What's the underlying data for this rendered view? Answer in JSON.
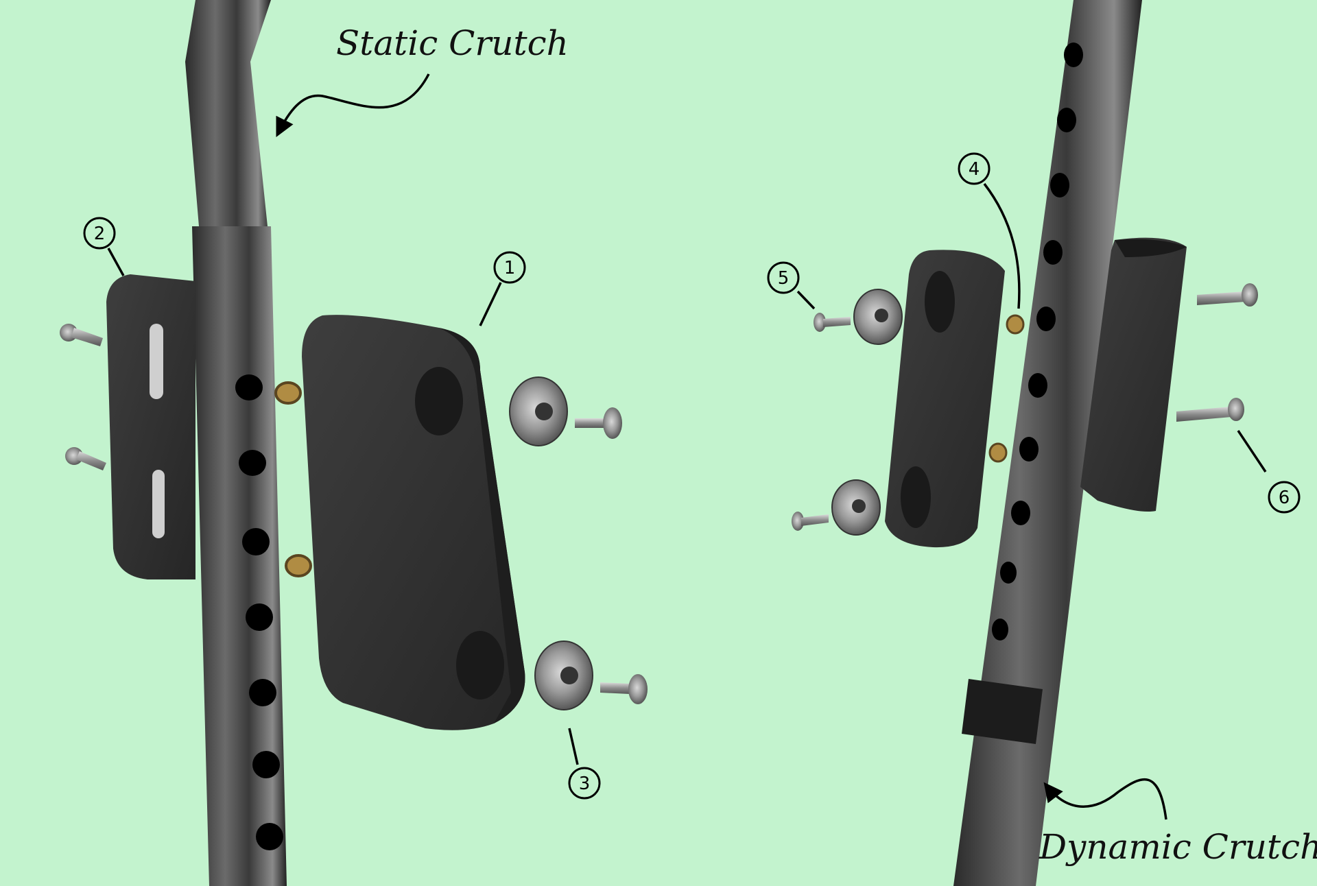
{
  "labels": {
    "static_crutch": "Static Crutch",
    "dynamic_crutch": "Dynamic Crutch"
  },
  "callouts": [
    "1",
    "2",
    "3",
    "4",
    "5",
    "6"
  ],
  "colors": {
    "background": "#c3f3ce",
    "tube": "#4a4a4a",
    "pad": "#2f2f2f",
    "washer": "#8a8a8a",
    "bushing": "#9a7a3a",
    "ink": "#000000"
  }
}
